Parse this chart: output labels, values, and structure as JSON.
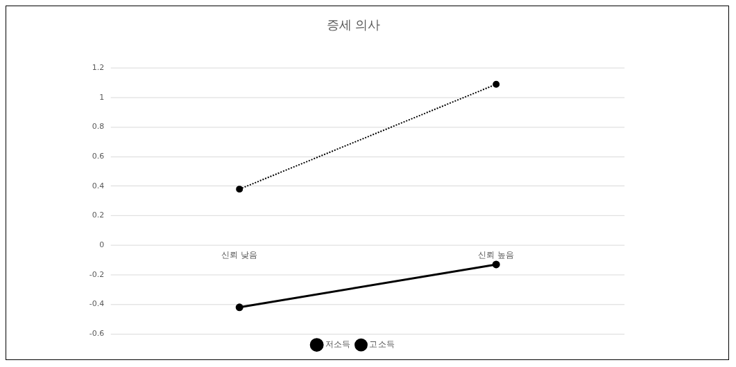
{
  "chart_data": {
    "type": "line",
    "title": "증세 의사",
    "categories": [
      "신뢰 낮음",
      "신뢰 높음"
    ],
    "series": [
      {
        "name": "저소득",
        "color": "#000000",
        "values": [
          -0.42,
          -0.13
        ],
        "line_style": "solid"
      },
      {
        "name": "고소득",
        "color": "#000000",
        "values": [
          0.38,
          1.09
        ],
        "line_style": "dotted"
      }
    ],
    "ylim": [
      -0.6,
      1.2
    ],
    "yticks": [
      -0.6,
      -0.4,
      -0.2,
      0,
      0.2,
      0.4,
      0.6,
      0.8,
      1,
      1.2
    ],
    "grid": "y",
    "legend": "bottom",
    "marker": "circle"
  }
}
